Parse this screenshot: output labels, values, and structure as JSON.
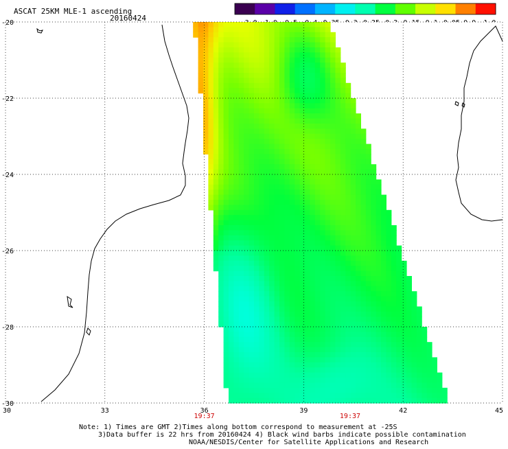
{
  "header": {
    "title": "ASCAT 25KM MLE-1 ascending",
    "date": "20160424"
  },
  "colorbar": {
    "labels": [
      "-3.0",
      "-1.0",
      "-0.5",
      "-0.4",
      "-0.35",
      "-0.3",
      "-0.25",
      "-0.2",
      "-0.15",
      "-0.1",
      "-0.05",
      "0.0",
      "1.0"
    ],
    "colors": [
      "#3a0050",
      "#5a00a8",
      "#1020e8",
      "#0070ff",
      "#00b4ff",
      "#00f0f0",
      "#00ffb0",
      "#00ff40",
      "#60ff00",
      "#c8ff00",
      "#ffe000",
      "#ff8000",
      "#ff1000"
    ]
  },
  "map": {
    "lat_labels": [
      "-20",
      "-22",
      "-24",
      "-26",
      "-28",
      "-30"
    ],
    "lon_labels": [
      "30",
      "33",
      "36",
      "39",
      "42",
      "45"
    ],
    "lat_values": [
      -20,
      -22,
      -24,
      -26,
      -28,
      -30
    ],
    "lon_values": [
      30,
      33,
      36,
      39,
      42,
      45
    ],
    "time_labels": [
      "19:37",
      "19:37"
    ],
    "time_lons": [
      36,
      40.4
    ],
    "time_color": "#cc0000",
    "swath": {
      "top_left_lon": 35.7,
      "top_right_lon": 39.7,
      "bottom_left_lon": 36.7,
      "bottom_right_lon": 43.3,
      "lat_top": -20,
      "lat_bottom": -30
    }
  },
  "notes": {
    "line1": "Note: 1) Times are GMT 2)Times along bottom correspond to measurement at -25S",
    "line2": "3)Data buffer is 22 hrs from 20160424 4) Black wind barbs indicate possible contamination",
    "line3": "NOAA/NESDIS/Center for Satellite Applications and Research"
  }
}
